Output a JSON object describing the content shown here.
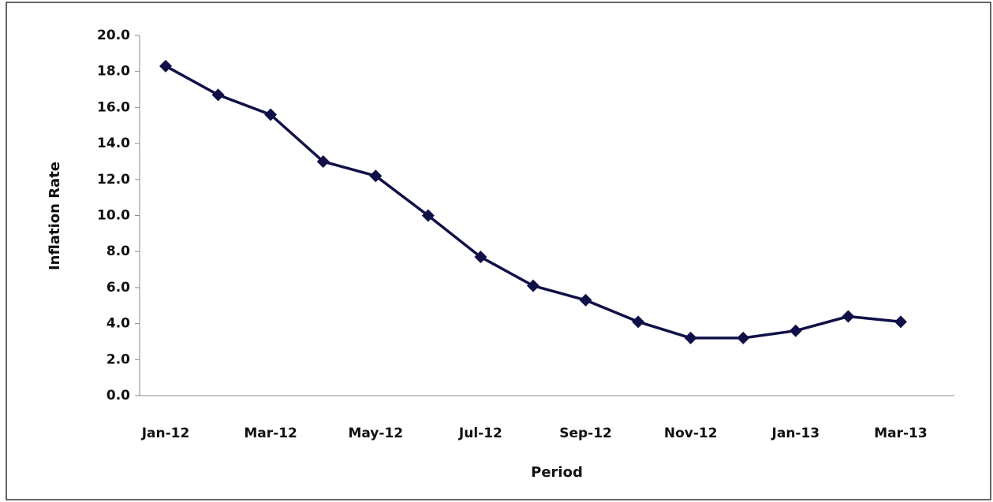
{
  "chart_data": {
    "type": "line",
    "x_label": "Period",
    "y_label": "Inflation Rate",
    "categories": [
      "Jan-12",
      null,
      "Mar-12",
      null,
      "May-12",
      null,
      "Jul-12",
      null,
      "Sep-12",
      null,
      "Nov-12",
      null,
      "Jan-13",
      null,
      "Mar-13"
    ],
    "series": [
      {
        "color": "#101048",
        "values": [
          18.3,
          16.7,
          15.6,
          13.0,
          12.2,
          10.0,
          7.7,
          6.1,
          5.3,
          4.1,
          3.2,
          3.2,
          3.6,
          4.4,
          4.1
        ]
      }
    ],
    "ylim": [
      0,
      20
    ],
    "yticks": [
      {
        "value": 0,
        "label": "0.0"
      },
      {
        "value": 2,
        "label": "2.0"
      },
      {
        "value": 4,
        "label": "4.0"
      },
      {
        "value": 6,
        "label": "6.0"
      },
      {
        "value": 8,
        "label": "8.0"
      },
      {
        "value": 10,
        "label": "10.0"
      },
      {
        "value": 12,
        "label": "12.0"
      },
      {
        "value": 14,
        "label": "14.0"
      },
      {
        "value": 16,
        "label": "16.0"
      },
      {
        "value": 18,
        "label": "18.0"
      },
      {
        "value": 20,
        "label": "20.0"
      }
    ],
    "grid": false,
    "marker": "diamond"
  }
}
